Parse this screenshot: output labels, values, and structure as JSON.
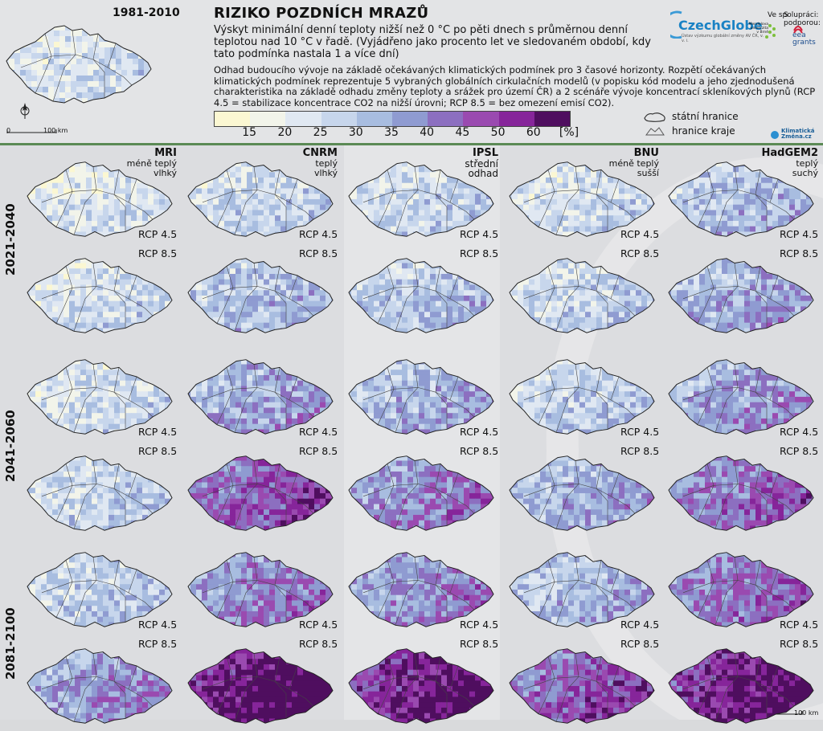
{
  "header": {
    "base_period": "1981-2010",
    "title": "RIZIKO POZDNÍCH MRAZŮ",
    "subtitle": "Výskyt minimální denní teploty nižší než 0 °C po pěti dnech s průměrnou denní teplotou nad 10 °C v řadě. (Vyjádřeno jako procento let ve sledovaném období, kdy tato podmínka nastala 1 a více dní)",
    "description": "Odhad budoucího vývoje na základě očekávaných klimatických podmínek pro 3 časové horizonty. Rozpětí očekávaných klimatických podmínek reprezentuje 5 vybraných globálních cirkulačních modelů (v popisku kód modelu a jeho zjednodušená charakteristika na základě odhadu změny teploty a srážek pro území ČR) a 2 scénáře vývoje koncentrací skleníkových plynů (RCP 4.5 = stabilizace koncentrace CO2 na nižší úrovni; RCP 8.5 = bez omezení emisí CO2).",
    "logo_czechglobe": "CzechGlobe",
    "logo_small_text": "Ústav výzkumu globální změny AV ČR, v. v. i.",
    "cooperation_label": "Ve spolupráci:",
    "support_label": "S podporou:",
    "mendel_text": "Mendelova univerzita v Brně",
    "eea_text": "eea grants",
    "klima_text": "Klimatická Změna.cz"
  },
  "colorbar": {
    "labels": [
      "15",
      "20",
      "25",
      "30",
      "35",
      "40",
      "45",
      "50",
      "60",
      "[%]"
    ],
    "colors": [
      "#fbf7d2",
      "#f2f4ea",
      "#e0e8f2",
      "#c7d6ec",
      "#a8bde0",
      "#8f9bd1",
      "#8c6fc0",
      "#9a4ab0",
      "#86259a",
      "#4f0e5f"
    ]
  },
  "legend": {
    "state_border": "státní hranice",
    "region_border": "hranice kraje"
  },
  "scalebar": {
    "zero": "0",
    "hundred": "100 km"
  },
  "models": [
    {
      "code": "MRI",
      "desc1": "méně teplý",
      "desc2": "vlhký"
    },
    {
      "code": "CNRM",
      "desc1": "teplý",
      "desc2": "vlhký"
    },
    {
      "code": "IPSL",
      "desc1": "střední",
      "desc2": "odhad"
    },
    {
      "code": "BNU",
      "desc1": "méně teplý",
      "desc2": "sušší"
    },
    {
      "code": "HadGEM2",
      "desc1": "teplý",
      "desc2": "suchý"
    }
  ],
  "periods": [
    "2021-2040",
    "2041-2060",
    "2081-2100"
  ],
  "scenarios": [
    "RCP 4.5",
    "RCP 8.5"
  ],
  "intensity": [
    [
      [
        0.28,
        0.34,
        0.34,
        0.3,
        0.42
      ],
      [
        0.3,
        0.42,
        0.4,
        0.34,
        0.48
      ]
    ],
    [
      [
        0.3,
        0.5,
        0.46,
        0.36,
        0.52
      ],
      [
        0.34,
        0.72,
        0.6,
        0.48,
        0.66
      ]
    ],
    [
      [
        0.36,
        0.6,
        0.58,
        0.44,
        0.64
      ],
      [
        0.55,
        0.96,
        0.9,
        0.72,
        0.9
      ]
    ]
  ],
  "base_intensity": 0.3
}
